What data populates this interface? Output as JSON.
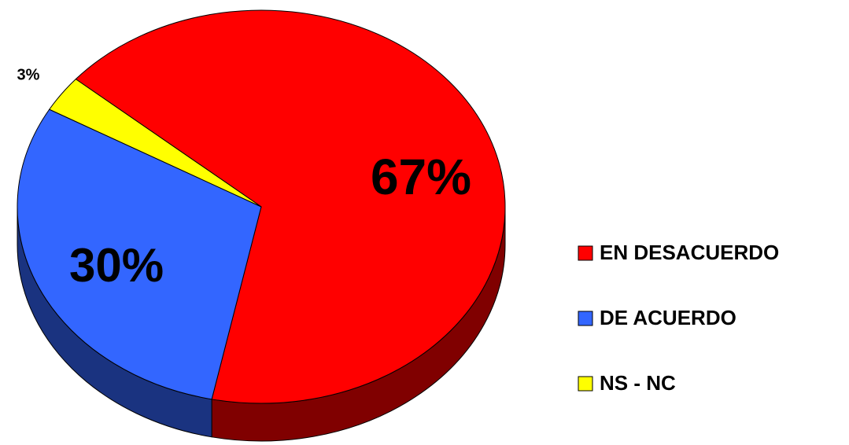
{
  "chart_data": {
    "type": "pie",
    "categories": [
      "EN DESACUERDO",
      "DE ACUERDO",
      "NS - NC"
    ],
    "values": [
      67,
      30,
      3
    ],
    "value_labels": [
      "67%",
      "30%",
      "3%"
    ],
    "colors": [
      "#ff0000",
      "#3366ff",
      "#ffff00"
    ],
    "legend": "right"
  }
}
